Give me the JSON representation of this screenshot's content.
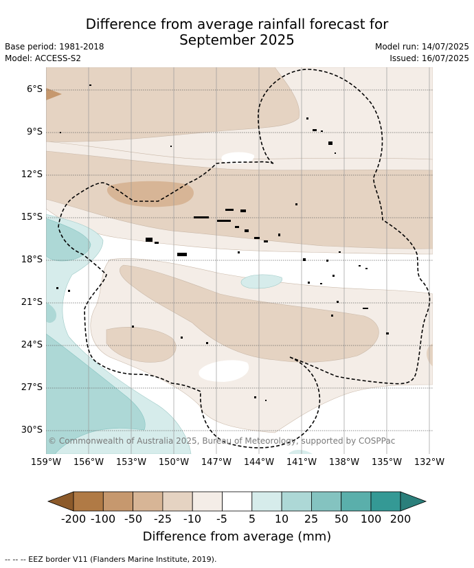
{
  "title": {
    "line1": "Difference from average rainfall forecast for",
    "line2": "September 2025"
  },
  "meta": {
    "base_period": "Base period: 1981-2018",
    "model": "Model: ACCESS-S2",
    "model_run": "Model run: 14/07/2025",
    "issued": "Issued: 16/07/2025"
  },
  "map": {
    "lat_labels": [
      "6°S",
      "9°S",
      "12°S",
      "15°S",
      "18°S",
      "21°S",
      "24°S",
      "27°S",
      "30°S"
    ],
    "lon_labels": [
      "159°W",
      "156°W",
      "153°W",
      "150°W",
      "147°W",
      "144°W",
      "141°W",
      "138°W",
      "135°W",
      "132°W"
    ],
    "copyright": "© Commonwealth of Australia 2025, Bureau of Meteorology, supported by COSPPac"
  },
  "colorbar": {
    "ticks": [
      "-200",
      "-100",
      "-50",
      "-25",
      "-10",
      "-5",
      "5",
      "10",
      "25",
      "50",
      "100",
      "200"
    ],
    "colors": [
      "#8c5a2a",
      "#b07a45",
      "#c6986e",
      "#d7b596",
      "#e5d3c2",
      "#f4ede7",
      "#ffffff",
      "#d6eceb",
      "#add8d6",
      "#84c3c0",
      "#5aafab",
      "#349995",
      "#2b7f7b"
    ],
    "title": "Difference from average (mm)"
  },
  "footnote": "-- -- -- EEZ border V11 (Flanders Marine Institute, 2019)."
}
